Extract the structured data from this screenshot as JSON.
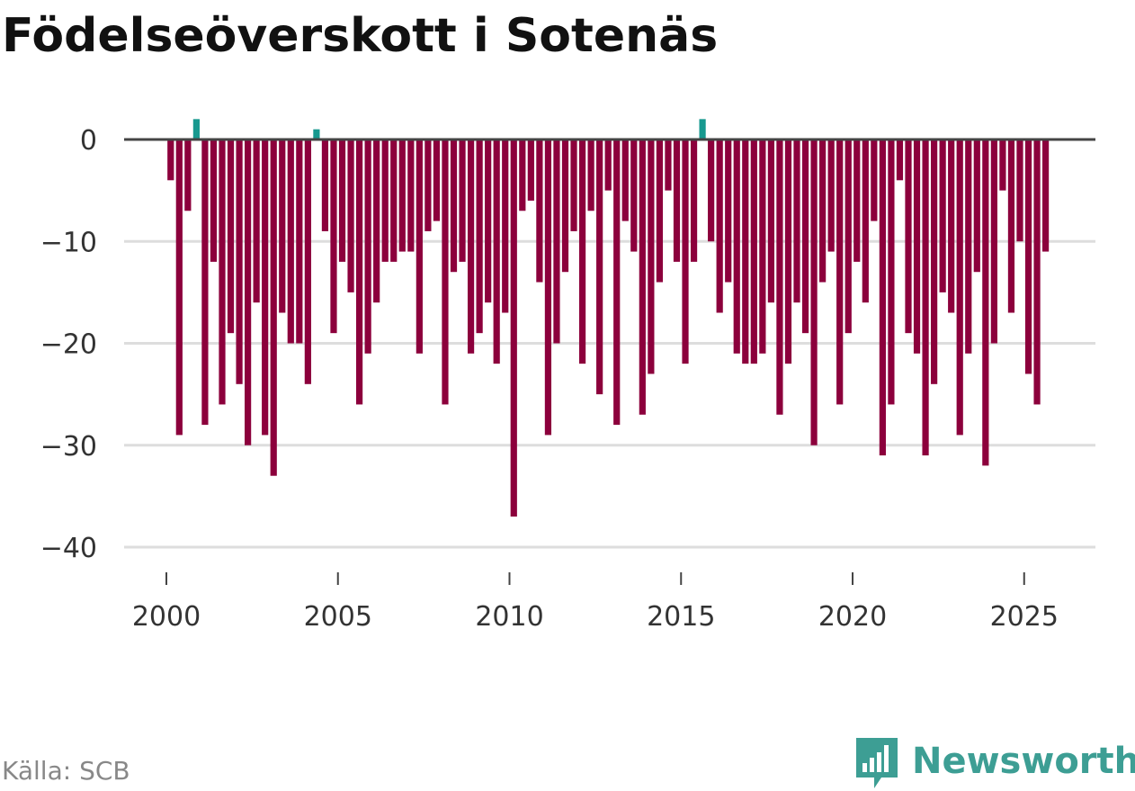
{
  "header": {
    "title": "Födelseöverskott i Sotenäs"
  },
  "footer": {
    "source_label": "Källa:",
    "source_name": "SCB",
    "brand_name": "Newsworthy"
  },
  "colors": {
    "negative": "#8c003c",
    "positive": "#17998f",
    "gridline": "#dddddd",
    "zero_line": "#444444",
    "brand": "#3d9e94"
  },
  "chart_data": {
    "type": "bar",
    "title": "Födelseöverskott i Sotenäs",
    "xlabel": "",
    "ylabel": "",
    "ylim": [
      -42,
      3
    ],
    "y_ticks": [
      0,
      -10,
      -20,
      -30,
      -40
    ],
    "y_tick_labels": [
      "0",
      "−10",
      "−20",
      "−30",
      "−40"
    ],
    "x_ticks": [
      2000,
      2005,
      2010,
      2015,
      2020,
      2025
    ],
    "x_tick_labels": [
      "2000",
      "2005",
      "2010",
      "2015",
      "2020",
      "2025"
    ],
    "start_year": 2000,
    "start_quarter": 1,
    "frequency": "quarterly",
    "values": [
      -4,
      -29,
      -7,
      2,
      -28,
      -12,
      -26,
      -19,
      -24,
      -30,
      -16,
      -29,
      -33,
      -17,
      -20,
      -20,
      -24,
      1,
      -9,
      -19,
      -12,
      -15,
      -26,
      -21,
      -16,
      -12,
      -12,
      -11,
      -11,
      -21,
      -9,
      -8,
      -26,
      -13,
      -12,
      -21,
      -19,
      -16,
      -22,
      -17,
      -37,
      -7,
      -6,
      -14,
      -29,
      -20,
      -13,
      -9,
      -22,
      -7,
      -25,
      -5,
      -28,
      -8,
      -11,
      -27,
      -23,
      -14,
      -5,
      -12,
      -22,
      -12,
      2,
      -10,
      -17,
      -14,
      -21,
      -22,
      -22,
      -21,
      -16,
      -27,
      -22,
      -16,
      -19,
      -30,
      -14,
      -11,
      -26,
      -19,
      -12,
      -16,
      -8,
      -31,
      -26,
      -4,
      -19,
      -21,
      -31,
      -24,
      -15,
      -17,
      -29,
      -21,
      -13,
      -32,
      -20,
      -5,
      -17,
      -10,
      -23,
      -26,
      -11
    ]
  }
}
